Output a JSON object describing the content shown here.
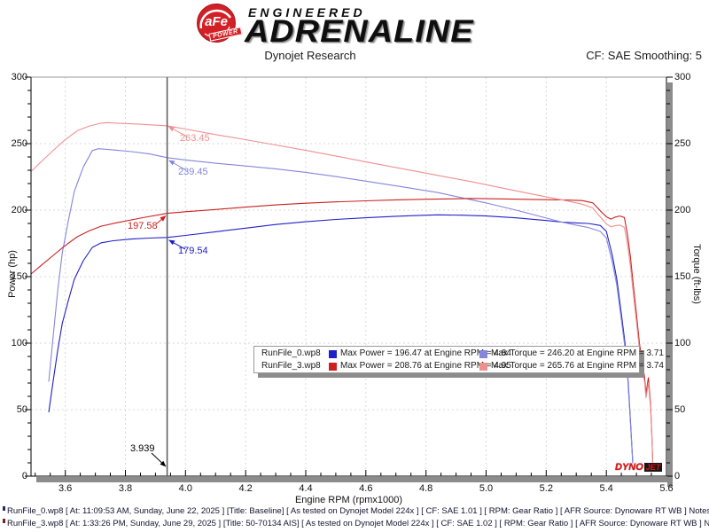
{
  "header": {
    "badge_text": "aFe",
    "badge_sub": "POWER",
    "brand_top": "ENGINEERED",
    "brand_main": "ADRENALINE",
    "title": "Dynojet Research",
    "smoothing": "CF: SAE Smoothing: 5"
  },
  "chart_data": {
    "type": "line",
    "title": "Dynojet Research",
    "xlabel": "Engine RPM (rpmx1000)",
    "ylabel_left": "Power (hp)",
    "ylabel_right": "Torque (ft-lbs)",
    "xlim": [
      3.486,
      5.6
    ],
    "ylim": [
      0,
      300
    ],
    "x_ticks": [
      3.6,
      3.8,
      4.0,
      4.2,
      4.4,
      4.6,
      4.8,
      5.0,
      5.2,
      5.4,
      5.6
    ],
    "x_tick_labels": [
      "3.6",
      "3.8",
      "4.0",
      "4.2",
      "4.4",
      "4.6",
      "4.8",
      "5.0",
      "5.2",
      "5.4",
      "5.6"
    ],
    "y_ticks": [
      0,
      50,
      100,
      150,
      200,
      250,
      300
    ],
    "y_tick_labels": [
      "0",
      "50",
      "100",
      "150",
      "200",
      "250",
      "300"
    ],
    "grid": "dashed-major",
    "legend_position": "lower-center",
    "cursor_rpm": 3.939,
    "series": [
      {
        "name": "RunFile_0.wp8 Power (hp)",
        "color": "#2020c8",
        "max_label": "Max Power = 196.47 at Engine RPM = 4.84",
        "points": [
          [
            3.545,
            48
          ],
          [
            3.56,
            72
          ],
          [
            3.575,
            95
          ],
          [
            3.59,
            115
          ],
          [
            3.61,
            132
          ],
          [
            3.63,
            148
          ],
          [
            3.66,
            162
          ],
          [
            3.69,
            172
          ],
          [
            3.72,
            175.5
          ],
          [
            3.76,
            177
          ],
          [
            3.82,
            178.3
          ],
          [
            3.88,
            179
          ],
          [
            3.939,
            179.5
          ],
          [
            4.0,
            181
          ],
          [
            4.1,
            183.7
          ],
          [
            4.2,
            186.5
          ],
          [
            4.3,
            189.2
          ],
          [
            4.4,
            191.3
          ],
          [
            4.5,
            193
          ],
          [
            4.6,
            194.3
          ],
          [
            4.7,
            195.4
          ],
          [
            4.78,
            196.1
          ],
          [
            4.84,
            196.5
          ],
          [
            4.92,
            196.2
          ],
          [
            5.0,
            195.6
          ],
          [
            5.1,
            194.2
          ],
          [
            5.2,
            192.2
          ],
          [
            5.252,
            191
          ],
          [
            5.3,
            190.4
          ],
          [
            5.34,
            190
          ],
          [
            5.38,
            188.5
          ],
          [
            5.4,
            184
          ],
          [
            5.42,
            166
          ],
          [
            5.435,
            148
          ],
          [
            5.45,
            122
          ],
          [
            5.46,
            104
          ],
          [
            5.468,
            88
          ],
          [
            5.475,
            62
          ],
          [
            5.482,
            34
          ],
          [
            5.488,
            10
          ]
        ]
      },
      {
        "name": "RunFile_0.wp8 Torque (ft-lbs)",
        "color": "#8585dd",
        "max_label": "Max Torque = 246.20 at Engine RPM = 3.71",
        "points": [
          [
            3.545,
            71
          ],
          [
            3.56,
            106
          ],
          [
            3.575,
            140
          ],
          [
            3.59,
            168
          ],
          [
            3.61,
            192
          ],
          [
            3.63,
            214
          ],
          [
            3.66,
            232.5
          ],
          [
            3.69,
            244.8
          ],
          [
            3.71,
            246.2
          ],
          [
            3.76,
            245.3
          ],
          [
            3.82,
            244
          ],
          [
            3.88,
            242.3
          ],
          [
            3.939,
            239.5
          ],
          [
            4.0,
            237.7
          ],
          [
            4.1,
            235.3
          ],
          [
            4.2,
            233.2
          ],
          [
            4.3,
            231.1
          ],
          [
            4.4,
            228.4
          ],
          [
            4.5,
            225.3
          ],
          [
            4.6,
            221.8
          ],
          [
            4.7,
            218.3
          ],
          [
            4.84,
            213.2
          ],
          [
            5.0,
            205.4
          ],
          [
            5.1,
            200
          ],
          [
            5.2,
            194.1
          ],
          [
            5.252,
            191
          ],
          [
            5.3,
            188.7
          ],
          [
            5.34,
            186.9
          ],
          [
            5.38,
            184
          ],
          [
            5.4,
            179
          ],
          [
            5.42,
            160.9
          ],
          [
            5.435,
            143.4
          ],
          [
            5.45,
            117.6
          ],
          [
            5.46,
            100
          ],
          [
            5.468,
            84.5
          ],
          [
            5.475,
            59.5
          ],
          [
            5.482,
            32.6
          ],
          [
            5.488,
            9.6
          ]
        ]
      },
      {
        "name": "RunFile_3.wp8 Power (hp)",
        "color": "#cc2020",
        "max_label": "Max Power = 208.76 at Engine RPM = 4.95",
        "points": [
          [
            3.486,
            152
          ],
          [
            3.52,
            158.5
          ],
          [
            3.56,
            166
          ],
          [
            3.6,
            173.5
          ],
          [
            3.64,
            180
          ],
          [
            3.68,
            184.5
          ],
          [
            3.72,
            188
          ],
          [
            3.77,
            190.5
          ],
          [
            3.85,
            194
          ],
          [
            3.939,
            197.6
          ],
          [
            4.0,
            198.8
          ],
          [
            4.1,
            200.5
          ],
          [
            4.2,
            202.3
          ],
          [
            4.3,
            203.9
          ],
          [
            4.4,
            205.2
          ],
          [
            4.5,
            206.2
          ],
          [
            4.6,
            207
          ],
          [
            4.7,
            207.7
          ],
          [
            4.8,
            208.2
          ],
          [
            4.88,
            208.5
          ],
          [
            4.95,
            208.8
          ],
          [
            5.05,
            208.5
          ],
          [
            5.15,
            208.1
          ],
          [
            5.252,
            207.7
          ],
          [
            5.32,
            207.2
          ],
          [
            5.355,
            205.5
          ],
          [
            5.38,
            199.5
          ],
          [
            5.4,
            195
          ],
          [
            5.415,
            193.3
          ],
          [
            5.43,
            194.8
          ],
          [
            5.445,
            195.6
          ],
          [
            5.46,
            194.5
          ],
          [
            5.47,
            182
          ],
          [
            5.48,
            165
          ],
          [
            5.49,
            143
          ],
          [
            5.5,
            122
          ],
          [
            5.51,
            100
          ],
          [
            5.52,
            84
          ],
          [
            5.527,
            75
          ],
          [
            5.532,
            62
          ],
          [
            5.54,
            74
          ],
          [
            5.547,
            55
          ],
          [
            5.552,
            28
          ],
          [
            5.555,
            6
          ]
        ]
      },
      {
        "name": "RunFile_3.wp8 Torque (ft-lbs)",
        "color": "#ee9090",
        "max_label": "Max Torque = 265.76 at Engine RPM = 3.74",
        "points": [
          [
            3.486,
            229
          ],
          [
            3.52,
            236.4
          ],
          [
            3.56,
            244.9
          ],
          [
            3.6,
            253.1
          ],
          [
            3.64,
            259.7
          ],
          [
            3.68,
            263.3
          ],
          [
            3.72,
            265.4
          ],
          [
            3.74,
            265.8
          ],
          [
            3.77,
            265.4
          ],
          [
            3.85,
            264.6
          ],
          [
            3.939,
            263.4
          ],
          [
            4.0,
            261
          ],
          [
            4.1,
            256.8
          ],
          [
            4.2,
            253
          ],
          [
            4.3,
            249
          ],
          [
            4.4,
            244.9
          ],
          [
            4.5,
            240.7
          ],
          [
            4.6,
            236.3
          ],
          [
            4.7,
            232.1
          ],
          [
            4.8,
            227.8
          ],
          [
            4.88,
            224.4
          ],
          [
            4.95,
            221.5
          ],
          [
            5.05,
            216.8
          ],
          [
            5.15,
            212.2
          ],
          [
            5.252,
            207.7
          ],
          [
            5.32,
            204.5
          ],
          [
            5.355,
            201.6
          ],
          [
            5.38,
            194.8
          ],
          [
            5.4,
            189.7
          ],
          [
            5.415,
            187.5
          ],
          [
            5.43,
            188.4
          ],
          [
            5.445,
            188.7
          ],
          [
            5.46,
            187.1
          ],
          [
            5.47,
            174.8
          ],
          [
            5.48,
            158.1
          ],
          [
            5.49,
            136.8
          ],
          [
            5.5,
            116.5
          ],
          [
            5.51,
            95.3
          ],
          [
            5.52,
            79.9
          ],
          [
            5.527,
            71.3
          ],
          [
            5.532,
            58.9
          ],
          [
            5.54,
            70.2
          ],
          [
            5.547,
            52.1
          ],
          [
            5.552,
            26.5
          ],
          [
            5.555,
            5.7
          ]
        ]
      }
    ],
    "annotations": [
      {
        "id": "cursor-torque-run3",
        "text": "263.45",
        "color": "#ee9090"
      },
      {
        "id": "cursor-torque-run0",
        "text": "239.45",
        "color": "#8585dd"
      },
      {
        "id": "cursor-power-run3",
        "text": "197.58",
        "color": "#cc2020"
      },
      {
        "id": "cursor-power-run0",
        "text": "179.54",
        "color": "#2020c8"
      },
      {
        "id": "cursor-rpm",
        "text": "3.939",
        "color": "#000000"
      }
    ]
  },
  "legend": {
    "rows": [
      {
        "name": "RunFile_0.wp8",
        "power_color": "#2020c8",
        "power_text": "Max Power = 196.47 at Engine RPM = 4.84",
        "torque_color": "#8585dd",
        "torque_text": "Max Torque = 246.20 at Engine RPM = 3.71"
      },
      {
        "name": "RunFile_3.wp8",
        "power_color": "#cc2020",
        "power_text": "Max Power = 208.76 at Engine RPM = 4.95",
        "torque_color": "#ee9090",
        "torque_text": "Max Torque = 265.76 at Engine RPM = 3.74"
      }
    ]
  },
  "watermark": {
    "dyno": "DYNO",
    "jet": "JET"
  },
  "footer": {
    "lines": [
      {
        "marker_color": "#2a2a6a",
        "text": "RunFile_0.wp8 [ At: 11:09:53 AM, Sunday, June 22, 2025 ] [Title: Baseline]  [ As tested on Dynojet Model 224x ] [ CF: SAE 1.01 ] [ RPM: Gear Ratio ] [ AFR Source: Dynoware RT WB ] Notes:"
      },
      {
        "marker_color": "#7a1f1f",
        "text": "RunFile_3.wp8 [ At: 1:33:26 PM, Sunday, June 29, 2025 ] [Title: 50-70134 AIS]  [ As tested on Dynojet Model 224x ] [ CF: SAE 1.02 ] [ RPM: Gear Ratio ] [ AFR Source: Dynoware RT WB ] Notes:"
      }
    ]
  },
  "colors": {
    "axis": "#000000",
    "plot_top_border": "#999999",
    "grid": "#d8d8d8",
    "shadow": "#8c8c8c",
    "cursor": "#5a5a5a"
  }
}
